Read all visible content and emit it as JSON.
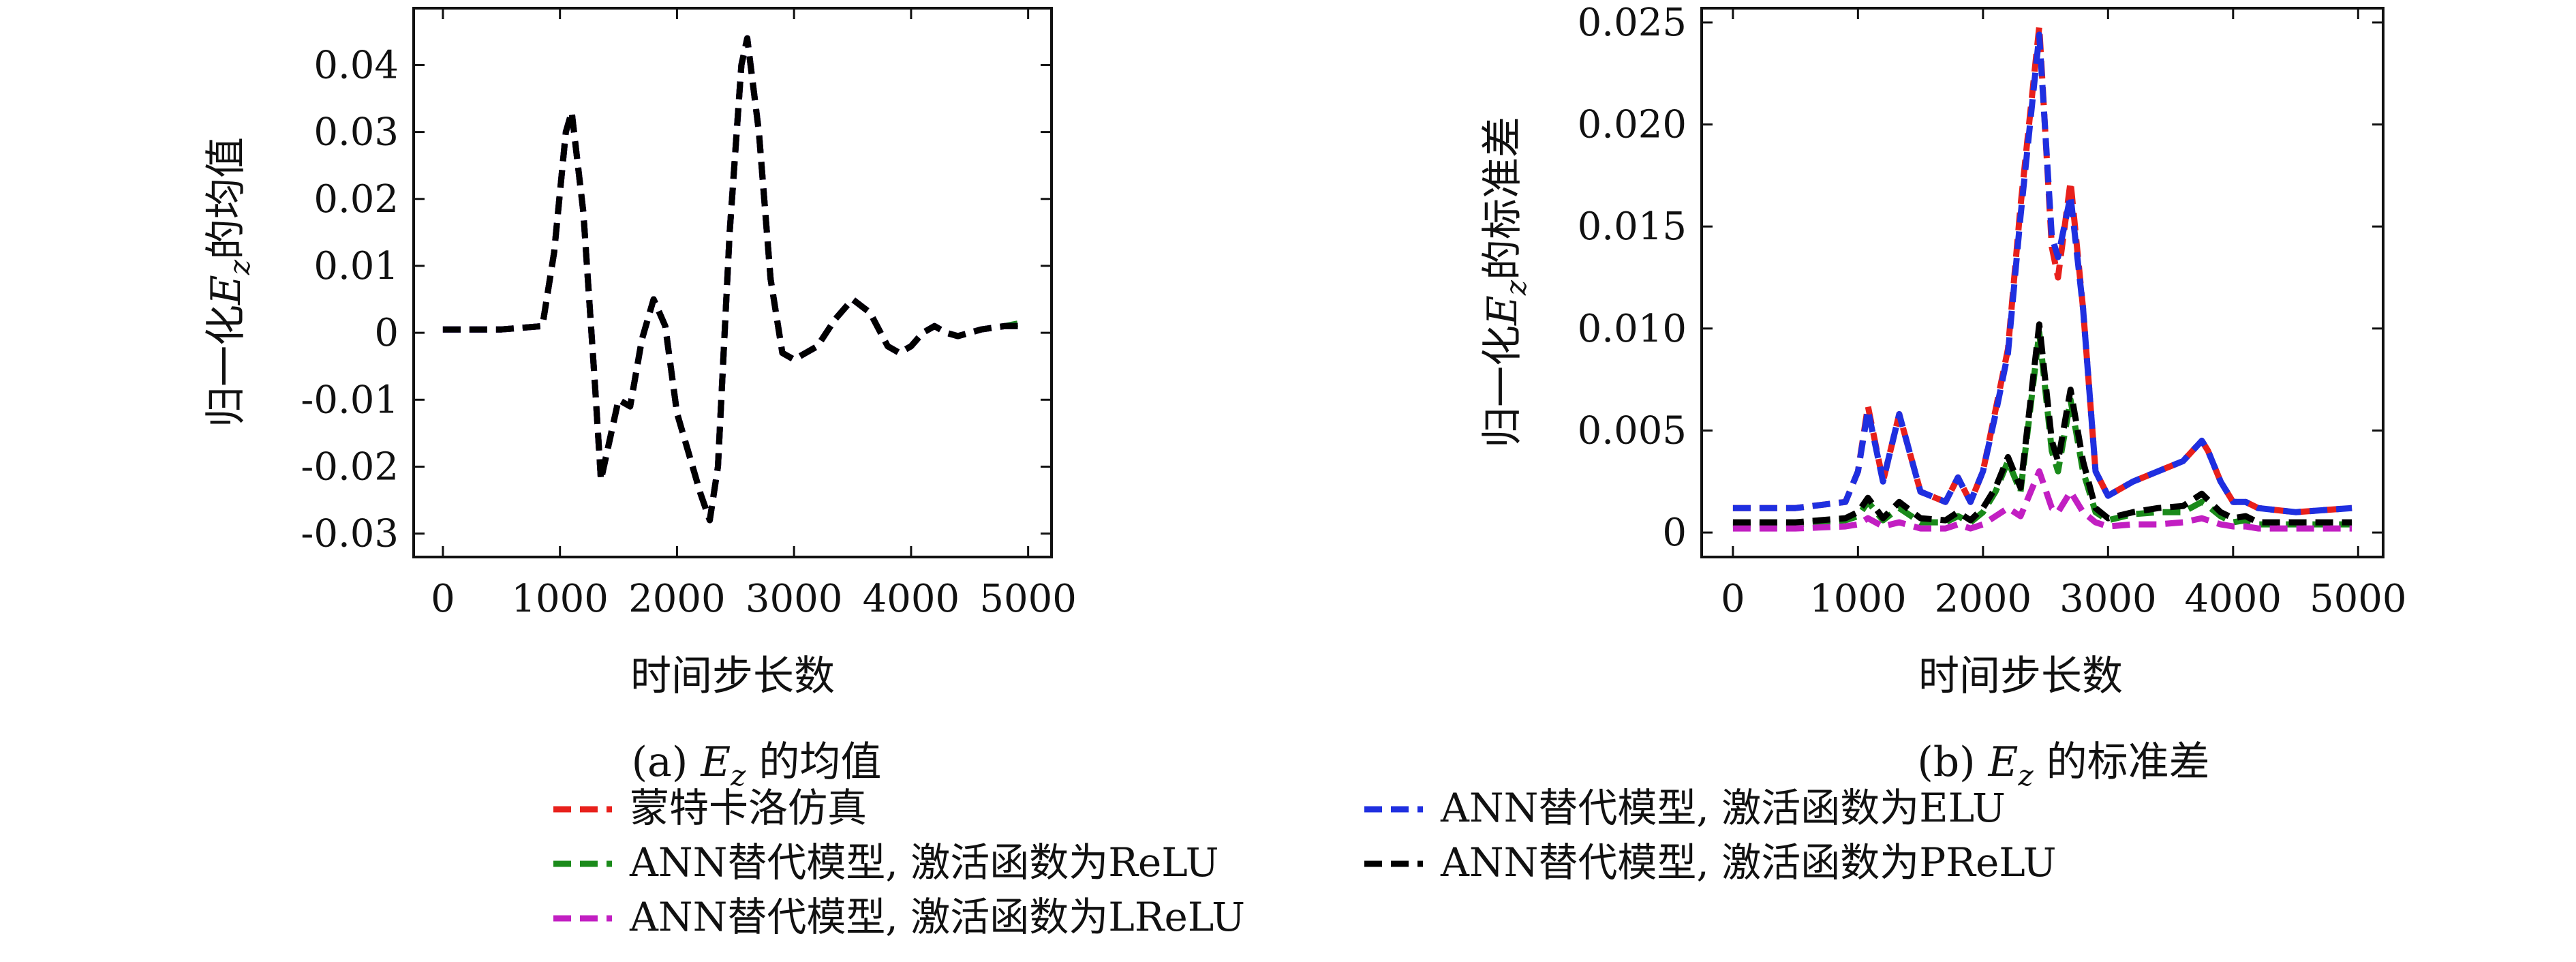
{
  "captions": [
    "(a) E_z 的均值",
    "(b) E_z 的标准差"
  ],
  "legend": {
    "items": [
      {
        "label": "蒙特卡洛仿真",
        "color": "#e8201b"
      },
      {
        "label": "ANN替代模型, 激活函数为ELU",
        "color": "#1f2fe0"
      },
      {
        "label": "ANN替代模型, 激活函数为ReLU",
        "color": "#1a8a1a"
      },
      {
        "label": "ANN替代模型, 激活函数为PReLU",
        "color": "#000000"
      },
      {
        "label": "ANN替代模型, 激活函数为LReLU",
        "color": "#c21fc2"
      }
    ]
  },
  "chart_data": [
    {
      "type": "line",
      "title": "",
      "xlabel": "时间步长数",
      "ylabel": "归一化E_z的均值",
      "xlim": [
        -250,
        5200
      ],
      "ylim": [
        -0.0335,
        0.0485
      ],
      "xticks": [
        0,
        1000,
        2000,
        3000,
        4000,
        5000
      ],
      "xtick_labels": [
        "0",
        "1000",
        "2000",
        "3000",
        "4000",
        "5000"
      ],
      "yticks": [
        -0.03,
        -0.02,
        -0.01,
        0,
        0.01,
        0.02,
        0.03,
        0.04
      ],
      "ytick_labels": [
        "-0.03",
        "-0.02",
        "-0.01",
        "0",
        "0.01",
        "0.02",
        "0.03",
        "0.04"
      ],
      "x": [
        0,
        500,
        850,
        950,
        1050,
        1100,
        1200,
        1300,
        1350,
        1450,
        1500,
        1600,
        1700,
        1800,
        1900,
        2000,
        2100,
        2200,
        2280,
        2350,
        2450,
        2550,
        2600,
        2700,
        2800,
        2900,
        3000,
        3100,
        3200,
        3350,
        3500,
        3650,
        3800,
        3900,
        4000,
        4100,
        4200,
        4300,
        4400,
        4600,
        4800,
        4950
      ],
      "series": [
        {
          "name": "蒙特卡洛仿真",
          "values": [
            0.0005,
            0.0005,
            0.001,
            0.012,
            0.03,
            0.033,
            0.018,
            -0.008,
            -0.022,
            -0.014,
            -0.01,
            -0.011,
            -0.001,
            0.005,
            0.001,
            -0.012,
            -0.018,
            -0.024,
            -0.028,
            -0.02,
            0.015,
            0.04,
            0.044,
            0.03,
            0.008,
            -0.003,
            -0.004,
            -0.003,
            -0.002,
            0.002,
            0.005,
            0.003,
            -0.002,
            -0.003,
            -0.002,
            0.0,
            0.001,
            0.0,
            -0.0005,
            0.0005,
            0.001,
            0.001
          ]
        },
        {
          "name": "ANN替代模型, 激活函数为ELU",
          "values": [
            0.0005,
            0.0005,
            0.001,
            0.012,
            0.03,
            0.033,
            0.018,
            -0.008,
            -0.022,
            -0.014,
            -0.01,
            -0.011,
            -0.001,
            0.005,
            0.001,
            -0.012,
            -0.018,
            -0.024,
            -0.028,
            -0.02,
            0.015,
            0.04,
            0.044,
            0.03,
            0.008,
            -0.003,
            -0.004,
            -0.003,
            -0.002,
            0.002,
            0.005,
            0.003,
            -0.002,
            -0.003,
            -0.002,
            0.0,
            0.001,
            0.0,
            -0.0005,
            0.0005,
            0.001,
            0.001
          ]
        },
        {
          "name": "ANN替代模型, 激活函数为ReLU",
          "values": [
            0.0005,
            0.0005,
            0.001,
            0.012,
            0.03,
            0.033,
            0.018,
            -0.008,
            -0.022,
            -0.014,
            -0.01,
            -0.011,
            -0.001,
            0.005,
            0.001,
            -0.012,
            -0.018,
            -0.024,
            -0.028,
            -0.02,
            0.015,
            0.04,
            0.044,
            0.03,
            0.008,
            -0.003,
            -0.004,
            -0.003,
            -0.002,
            0.002,
            0.005,
            0.003,
            -0.002,
            -0.003,
            -0.002,
            0.0,
            0.001,
            0.0,
            -0.0005,
            0.0005,
            0.001,
            0.0015
          ]
        },
        {
          "name": "ANN替代模型, 激活函数为PReLU",
          "values": [
            0.0005,
            0.0005,
            0.001,
            0.012,
            0.03,
            0.033,
            0.018,
            -0.008,
            -0.022,
            -0.014,
            -0.01,
            -0.011,
            -0.001,
            0.005,
            0.001,
            -0.012,
            -0.018,
            -0.024,
            -0.028,
            -0.02,
            0.015,
            0.04,
            0.044,
            0.03,
            0.008,
            -0.003,
            -0.004,
            -0.003,
            -0.002,
            0.002,
            0.005,
            0.003,
            -0.002,
            -0.003,
            -0.002,
            0.0,
            0.001,
            0.0,
            -0.0005,
            0.0005,
            0.001,
            0.001
          ]
        },
        {
          "name": "ANN替代模型, 激活函数为LReLU",
          "values": [
            0.0005,
            0.0005,
            0.001,
            0.012,
            0.03,
            0.033,
            0.018,
            -0.008,
            -0.022,
            -0.014,
            -0.01,
            -0.011,
            -0.001,
            0.005,
            0.001,
            -0.012,
            -0.018,
            -0.024,
            -0.028,
            -0.02,
            0.015,
            0.04,
            0.044,
            0.03,
            0.008,
            -0.003,
            -0.004,
            -0.003,
            -0.002,
            0.002,
            0.005,
            0.003,
            -0.002,
            -0.003,
            -0.002,
            0.0,
            0.001,
            0.0,
            -0.0005,
            0.0005,
            0.001,
            0.001
          ]
        }
      ]
    },
    {
      "type": "line",
      "title": "",
      "xlabel": "时间步长数",
      "ylabel": "归一化E_z的标准差",
      "xlim": [
        -250,
        5200
      ],
      "ylim": [
        -0.0012,
        0.0257
      ],
      "xticks": [
        0,
        1000,
        2000,
        3000,
        4000,
        5000
      ],
      "xtick_labels": [
        "0",
        "1000",
        "2000",
        "3000",
        "4000",
        "5000"
      ],
      "yticks": [
        0,
        0.005,
        0.01,
        0.015,
        0.02,
        0.025
      ],
      "ytick_labels": [
        "0",
        "0.005",
        "0.010",
        "0.015",
        "0.020",
        "0.025"
      ],
      "x": [
        0,
        500,
        900,
        1000,
        1080,
        1200,
        1330,
        1500,
        1700,
        1800,
        1900,
        2000,
        2100,
        2200,
        2300,
        2450,
        2550,
        2600,
        2700,
        2800,
        2900,
        3000,
        3200,
        3400,
        3600,
        3750,
        3800,
        3900,
        4000,
        4100,
        4200,
        4500,
        4950
      ],
      "series": [
        {
          "name": "蒙特卡洛仿真",
          "values": [
            0.0012,
            0.0012,
            0.0015,
            0.003,
            0.0062,
            0.0025,
            0.0058,
            0.002,
            0.0015,
            0.0027,
            0.0015,
            0.003,
            0.006,
            0.009,
            0.016,
            0.0248,
            0.014,
            0.0125,
            0.0172,
            0.011,
            0.003,
            0.0018,
            0.0025,
            0.003,
            0.0035,
            0.0045,
            0.004,
            0.0025,
            0.0015,
            0.0015,
            0.0012,
            0.001,
            0.0012
          ]
        },
        {
          "name": "ANN替代模型, 激活函数为ELU",
          "values": [
            0.0012,
            0.0012,
            0.0015,
            0.003,
            0.006,
            0.0025,
            0.0058,
            0.002,
            0.0015,
            0.0027,
            0.0015,
            0.003,
            0.0058,
            0.0088,
            0.0155,
            0.0244,
            0.0145,
            0.0135,
            0.0165,
            0.011,
            0.003,
            0.0018,
            0.0025,
            0.003,
            0.0035,
            0.0045,
            0.004,
            0.0025,
            0.0015,
            0.0015,
            0.0012,
            0.001,
            0.0012
          ]
        },
        {
          "name": "ANN替代模型, 激活函数为ReLU",
          "values": [
            0.0004,
            0.0004,
            0.0006,
            0.0008,
            0.0015,
            0.0006,
            0.0012,
            0.0005,
            0.0005,
            0.0008,
            0.0005,
            0.001,
            0.002,
            0.0035,
            0.002,
            0.0098,
            0.004,
            0.003,
            0.0065,
            0.003,
            0.001,
            0.0006,
            0.0009,
            0.001,
            0.001,
            0.0015,
            0.0013,
            0.0008,
            0.0005,
            0.0006,
            0.0004,
            0.0004,
            0.0004
          ]
        },
        {
          "name": "ANN替代模型, 激活函数为PReLU",
          "values": [
            0.0005,
            0.0005,
            0.0007,
            0.001,
            0.0017,
            0.0007,
            0.0015,
            0.0007,
            0.0006,
            0.001,
            0.0006,
            0.0012,
            0.0022,
            0.0037,
            0.0022,
            0.0102,
            0.0045,
            0.0035,
            0.007,
            0.0035,
            0.0012,
            0.0007,
            0.001,
            0.0012,
            0.0013,
            0.0019,
            0.0016,
            0.001,
            0.0007,
            0.0008,
            0.0005,
            0.0005,
            0.0005
          ]
        },
        {
          "name": "ANN替代模型, 激活函数为LReLU",
          "values": [
            0.0002,
            0.0002,
            0.0003,
            0.0004,
            0.0007,
            0.0003,
            0.0005,
            0.0002,
            0.0002,
            0.0004,
            0.0002,
            0.0004,
            0.0008,
            0.0012,
            0.0008,
            0.003,
            0.0012,
            0.001,
            0.002,
            0.001,
            0.0005,
            0.0003,
            0.0004,
            0.0004,
            0.0005,
            0.0007,
            0.0006,
            0.0004,
            0.0003,
            0.0003,
            0.0002,
            0.0002,
            0.0002
          ]
        }
      ]
    }
  ]
}
